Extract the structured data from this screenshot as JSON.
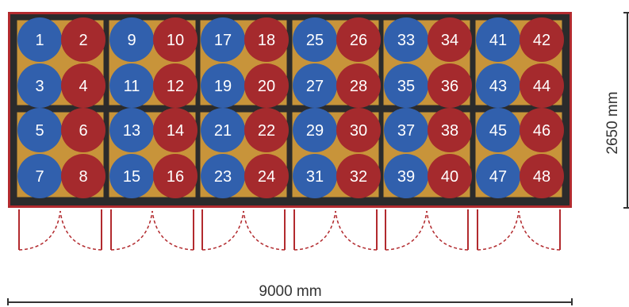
{
  "colors": {
    "outer_frame": "#b22a2e",
    "cell_frame": "#2b2b2b",
    "cell_fill": "#c8943a",
    "circle_blue": "#3160ad",
    "circle_red": "#a52a2d",
    "door_line": "#b22a2e",
    "dimension_line": "#333333"
  },
  "units": [
    {
      "numbers": [
        1,
        2,
        3,
        4,
        5,
        6,
        7,
        8
      ]
    },
    {
      "numbers": [
        9,
        10,
        11,
        12,
        13,
        14,
        15,
        16
      ]
    },
    {
      "numbers": [
        17,
        18,
        19,
        20,
        21,
        22,
        23,
        24
      ]
    },
    {
      "numbers": [
        25,
        26,
        27,
        28,
        29,
        30,
        31,
        32
      ]
    },
    {
      "numbers": [
        33,
        34,
        35,
        36,
        37,
        38,
        39,
        40
      ]
    },
    {
      "numbers": [
        41,
        42,
        43,
        44,
        45,
        46,
        47,
        48
      ]
    }
  ],
  "dimensions": {
    "width_label": "9000 mm",
    "height_label": "2650 mm"
  }
}
